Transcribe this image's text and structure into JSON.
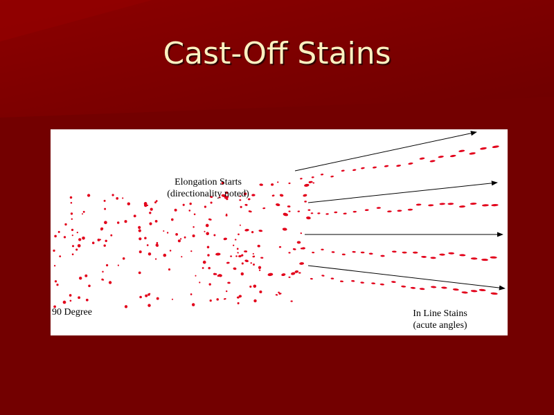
{
  "slide": {
    "title": "Cast-Off Stains",
    "background_color": "#730000",
    "title_color": "#fbf0c0"
  },
  "figure": {
    "background_color": "#ffffff",
    "stain_color": "#e2001a",
    "labels": {
      "elongation_line1": "Elongation Starts",
      "elongation_line2": "(directionality noted)",
      "ninety_degree": "90 Degree",
      "inline_line1": "In Line Stains",
      "inline_line2": "(acute angles)"
    }
  }
}
